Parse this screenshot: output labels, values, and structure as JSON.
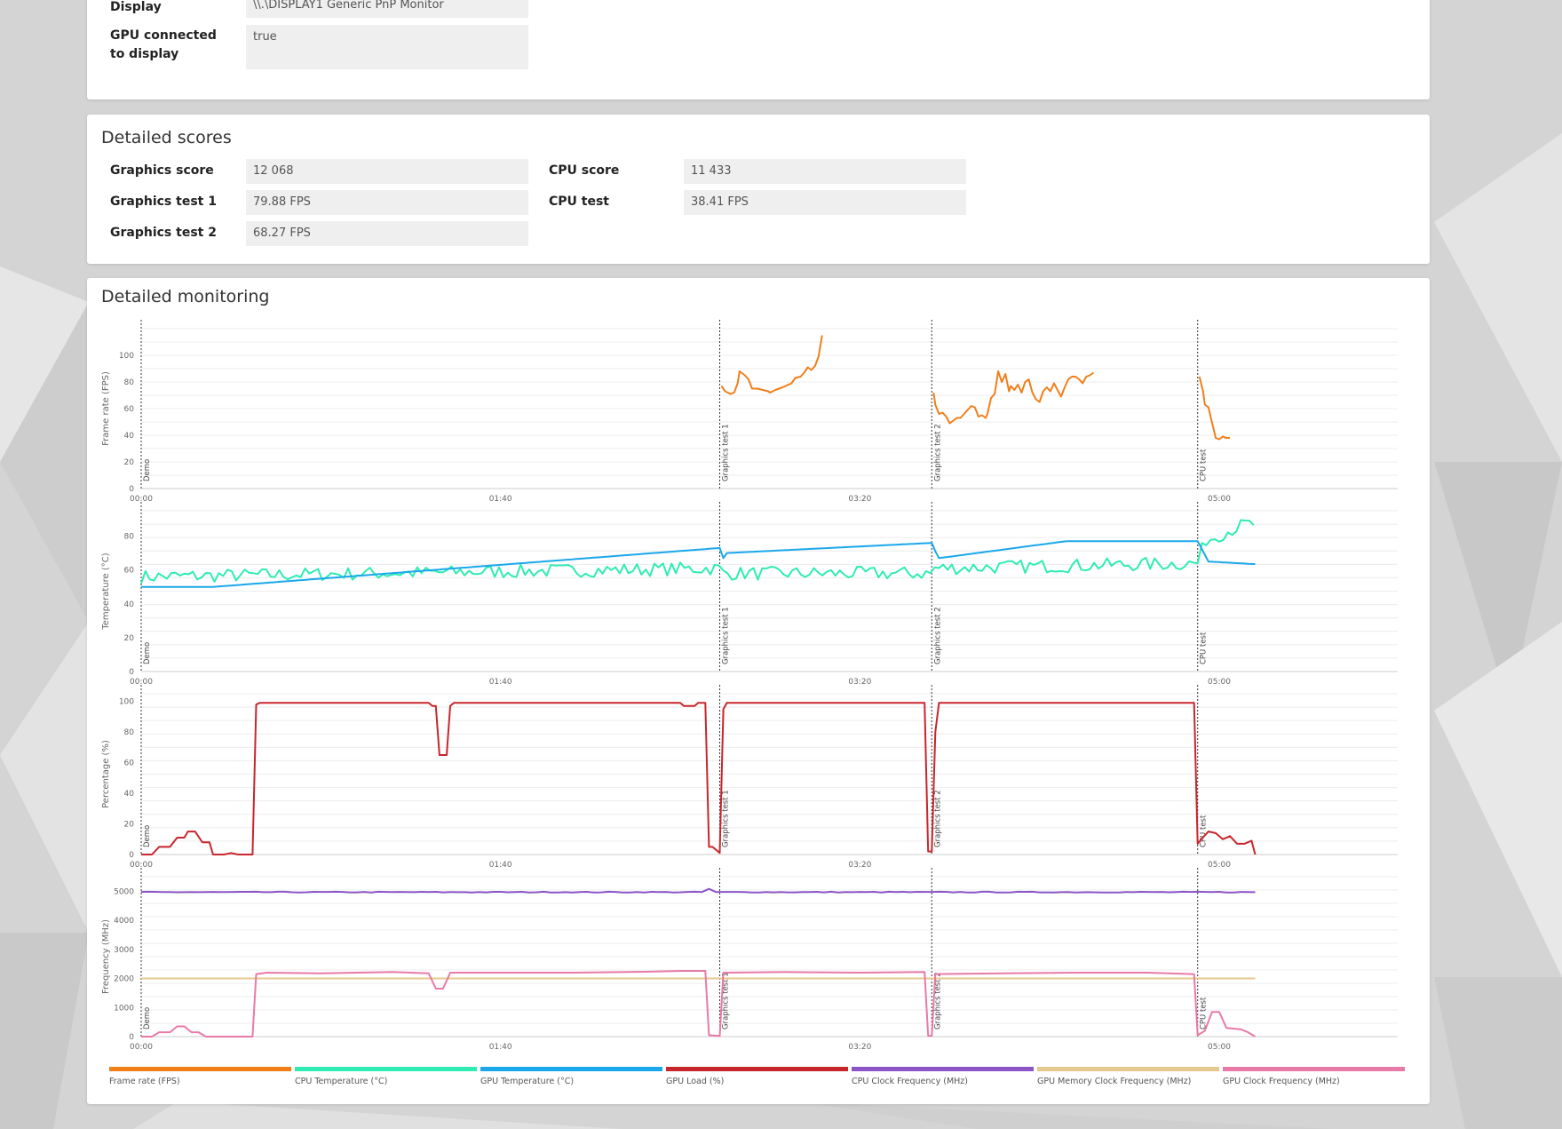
{
  "system_info": {
    "rows": [
      {
        "label": "Display",
        "value": "\\\\.\\DISPLAY1 Generic PnP Monitor"
      },
      {
        "label": "GPU connected to display",
        "value": "true"
      }
    ]
  },
  "scores": {
    "title": "Detailed scores",
    "left": [
      {
        "label": "Graphics score",
        "value": "12 068"
      },
      {
        "label": "Graphics test 1",
        "value": "79.88 FPS"
      },
      {
        "label": "Graphics test 2",
        "value": "68.27 FPS"
      }
    ],
    "right": [
      {
        "label": "CPU score",
        "value": "11 433"
      },
      {
        "label": "CPU test",
        "value": "38.41 FPS"
      }
    ]
  },
  "monitoring": {
    "title": "Detailed monitoring",
    "x_ticks": [
      "00:00",
      "01:40",
      "03:20",
      "05:00"
    ],
    "markers": [
      {
        "t": 0,
        "label": "Demo"
      },
      {
        "t": 161,
        "label": "Graphics test 1"
      },
      {
        "t": 220,
        "label": "Graphics test 2"
      },
      {
        "t": 294,
        "label": "CPU test"
      }
    ]
  },
  "chart_data": [
    {
      "type": "line",
      "ylabel": "Frame rate (FPS)",
      "ylim": [
        0,
        120
      ],
      "yticks": [
        0,
        20,
        40,
        60,
        80,
        100
      ],
      "xlim": [
        0,
        350
      ],
      "series": [
        {
          "name": "Frame rate (FPS)",
          "color": "#f07f1a",
          "segments": [
            [
              [
                1,
                77
              ],
              [
                3,
                73
              ],
              [
                6,
                71
              ],
              [
                8,
                72
              ],
              [
                10,
                79
              ],
              [
                11,
                88
              ],
              [
                14,
                85
              ],
              [
                16,
                82
              ],
              [
                18,
                75
              ],
              [
                21,
                75
              ],
              [
                24,
                74
              ],
              [
                27,
                73
              ],
              [
                28,
                72
              ],
              [
                31,
                74
              ],
              [
                35,
                76
              ],
              [
                40,
                79
              ],
              [
                42,
                83
              ],
              [
                45,
                84
              ],
              [
                47,
                87
              ],
              [
                49,
                91
              ],
              [
                51,
                89
              ],
              [
                53,
                92
              ],
              [
                55,
                99
              ],
              [
                57,
                115
              ]
            ],
            [
              [
                1,
                72
              ],
              [
                2,
                63
              ],
              [
                4,
                56
              ],
              [
                6,
                57
              ],
              [
                8,
                54
              ],
              [
                10,
                49
              ],
              [
                12,
                51
              ],
              [
                14,
                53
              ],
              [
                16,
                53
              ],
              [
                18,
                56
              ],
              [
                20,
                59
              ],
              [
                22,
                62
              ],
              [
                24,
                61
              ],
              [
                26,
                54
              ],
              [
                28,
                55
              ],
              [
                30,
                53
              ],
              [
                31,
                56
              ],
              [
                33,
                68
              ],
              [
                35,
                71
              ],
              [
                37,
                88
              ],
              [
                39,
                80
              ],
              [
                41,
                86
              ],
              [
                43,
                73
              ],
              [
                44,
                77
              ],
              [
                46,
                74
              ],
              [
                48,
                78
              ],
              [
                50,
                72
              ],
              [
                52,
                80
              ],
              [
                54,
                82
              ],
              [
                56,
                72
              ],
              [
                58,
                67
              ],
              [
                60,
                65
              ],
              [
                62,
                73
              ],
              [
                64,
                76
              ],
              [
                66,
                73
              ],
              [
                68,
                79
              ],
              [
                70,
                74
              ],
              [
                72,
                69
              ],
              [
                74,
                76
              ],
              [
                76,
                82
              ],
              [
                78,
                84
              ],
              [
                80,
                84
              ],
              [
                82,
                82
              ],
              [
                84,
                79
              ],
              [
                86,
                84
              ],
              [
                88,
                85
              ],
              [
                90,
                87
              ]
            ],
            [
              [
                1,
                84
              ],
              [
                3,
                73
              ],
              [
                4,
                63
              ],
              [
                6,
                61
              ],
              [
                7,
                55
              ],
              [
                9,
                44
              ],
              [
                10,
                38
              ],
              [
                12,
                37
              ],
              [
                14,
                39
              ],
              [
                16,
                38
              ],
              [
                18,
                38
              ]
            ]
          ]
        }
      ]
    },
    {
      "type": "line",
      "ylabel": "Temperature (°C)",
      "ylim": [
        0,
        95
      ],
      "yticks": [
        0,
        20,
        40,
        60,
        80
      ],
      "xlim": [
        0,
        350
      ],
      "series": [
        {
          "name": "CPU Temperature (°C)",
          "color": "#2eecb2"
        },
        {
          "name": "GPU Temperature (°C)",
          "color": "#1aa8ea"
        }
      ]
    },
    {
      "type": "line",
      "ylabel": "Percentage (%)",
      "ylim": [
        0,
        105
      ],
      "yticks": [
        0,
        20,
        40,
        60,
        80,
        100
      ],
      "xlim": [
        0,
        350
      ],
      "series": [
        {
          "name": "GPU Load (%)",
          "color": "#c8262c"
        }
      ]
    },
    {
      "type": "line",
      "ylabel": "Frequency (MHz)",
      "ylim": [
        0,
        5500
      ],
      "yticks": [
        0,
        1000,
        2000,
        3000,
        4000,
        5000
      ],
      "xlim": [
        0,
        350
      ],
      "series": [
        {
          "name": "CPU Clock Frequency (MHz)",
          "color": "#8b55c8"
        },
        {
          "name": "GPU Memory Clock Frequency (MHz)",
          "color": "#e6c98c"
        },
        {
          "name": "GPU Clock Frequency (MHz)",
          "color": "#e87aa8"
        }
      ]
    }
  ],
  "legend": [
    {
      "name": "Frame rate (FPS)",
      "color": "#f07f1a"
    },
    {
      "name": "CPU Temperature (°C)",
      "color": "#2eecb2"
    },
    {
      "name": "GPU Temperature (°C)",
      "color": "#1aa8ea"
    },
    {
      "name": "GPU Load (%)",
      "color": "#c8262c"
    },
    {
      "name": "CPU Clock Frequency (MHz)",
      "color": "#8b55c8"
    },
    {
      "name": "GPU Memory Clock Frequency (MHz)",
      "color": "#e6c98c"
    },
    {
      "name": "GPU Clock Frequency (MHz)",
      "color": "#e87aa8"
    }
  ]
}
